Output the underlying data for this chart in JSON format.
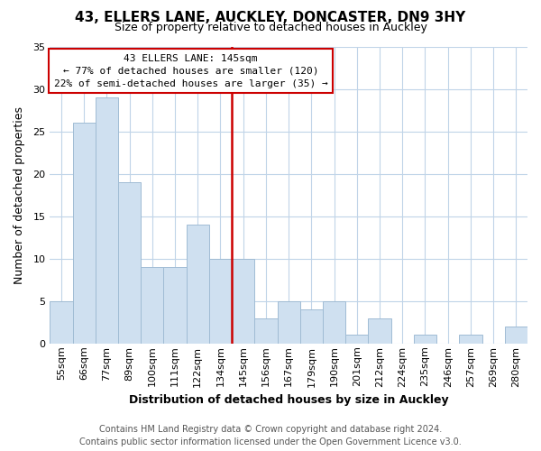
{
  "title": "43, ELLERS LANE, AUCKLEY, DONCASTER, DN9 3HY",
  "subtitle": "Size of property relative to detached houses in Auckley",
  "xlabel": "Distribution of detached houses by size in Auckley",
  "ylabel": "Number of detached properties",
  "bin_labels": [
    "55sqm",
    "66sqm",
    "77sqm",
    "89sqm",
    "100sqm",
    "111sqm",
    "122sqm",
    "134sqm",
    "145sqm",
    "156sqm",
    "167sqm",
    "179sqm",
    "190sqm",
    "201sqm",
    "212sqm",
    "224sqm",
    "235sqm",
    "246sqm",
    "257sqm",
    "269sqm",
    "280sqm"
  ],
  "bar_heights": [
    5,
    26,
    29,
    19,
    9,
    9,
    14,
    10,
    10,
    3,
    5,
    4,
    5,
    1,
    3,
    0,
    1,
    0,
    1,
    0,
    2
  ],
  "bar_color": "#cfe0f0",
  "bar_edge_color": "#a0bcd4",
  "vline_index": 8,
  "vline_color": "#cc0000",
  "ylim": [
    0,
    35
  ],
  "yticks": [
    0,
    5,
    10,
    15,
    20,
    25,
    30,
    35
  ],
  "annotation_title": "43 ELLERS LANE: 145sqm",
  "annotation_line1": "← 77% of detached houses are smaller (120)",
  "annotation_line2": "22% of semi-detached houses are larger (35) →",
  "annotation_box_color": "#ffffff",
  "annotation_box_edge": "#cc0000",
  "footer_line1": "Contains HM Land Registry data © Crown copyright and database right 2024.",
  "footer_line2": "Contains public sector information licensed under the Open Government Licence v3.0.",
  "background_color": "#ffffff",
  "grid_color": "#c0d4e8",
  "title_fontsize": 11,
  "subtitle_fontsize": 9,
  "xlabel_fontsize": 9,
  "ylabel_fontsize": 9,
  "tick_fontsize": 8,
  "annotation_fontsize": 8,
  "footer_fontsize": 7
}
